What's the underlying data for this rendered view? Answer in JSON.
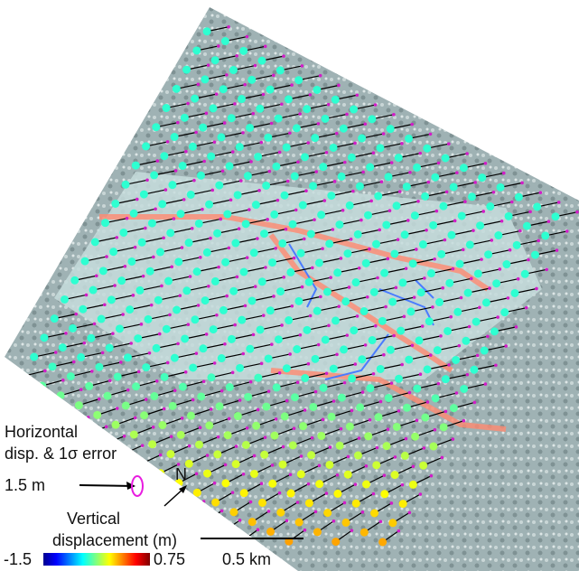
{
  "legend": {
    "horizontal_title": [
      "Horizontal",
      "disp. & 1σ error"
    ],
    "arrow_scale": "1.5 m",
    "north": "N",
    "vertical_title": [
      "Vertical",
      "displacement (m)"
    ],
    "colorbar": {
      "min": "-1.5",
      "max": "0.75"
    }
  },
  "scale_bar": "0.5 km"
}
